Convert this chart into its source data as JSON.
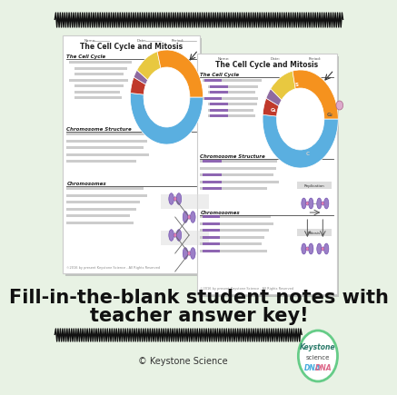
{
  "bg_color": "#e8f2e4",
  "title_line1": "Fill-in-the-blank student notes with",
  "title_line2": "teacher answer key!",
  "copyright_text": "© Keystone Science",
  "wave_color": "#111111",
  "logo_border_color": "#66cc88",
  "keystone_color": "#2a7a6a",
  "science_color": "#333333",
  "left_donut_segments": [
    [
      0,
      185,
      "#5aafe0"
    ],
    [
      185,
      205,
      "#c0392b"
    ],
    [
      205,
      215,
      "#8e6aa0"
    ],
    [
      215,
      255,
      "#e8c840"
    ],
    [
      255,
      360,
      "#f5921e"
    ]
  ],
  "right_donut_segments": [
    [
      0,
      185,
      "#5aafe0"
    ],
    [
      185,
      205,
      "#c0392b"
    ],
    [
      205,
      218,
      "#8e6aa0"
    ],
    [
      218,
      258,
      "#e8c840"
    ],
    [
      258,
      360,
      "#f5921e"
    ]
  ],
  "chrom_color1": "#9b7fc7",
  "chrom_color2": "#cc88bb",
  "chrom_pink": "#e080b0"
}
